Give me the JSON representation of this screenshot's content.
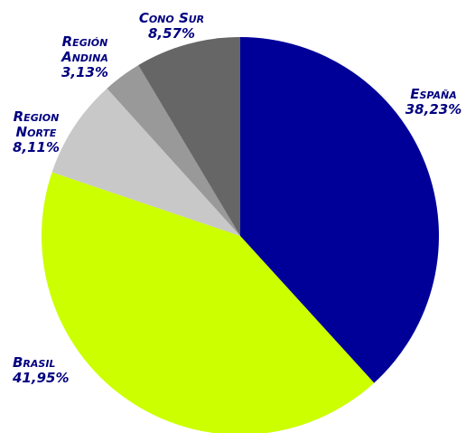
{
  "chart_data": {
    "type": "pie",
    "categories": [
      "España",
      "Brasil",
      "Region Norte",
      "Región Andina",
      "Cono Sur"
    ],
    "values": [
      38.23,
      41.95,
      8.11,
      3.13,
      8.57
    ],
    "value_labels": [
      "38,23%",
      "41,95%",
      "8,11%",
      "3,13%",
      "8,57%"
    ],
    "colors": [
      "#000099",
      "#ccff00",
      "#c8c8c8",
      "#999999",
      "#666666"
    ]
  }
}
